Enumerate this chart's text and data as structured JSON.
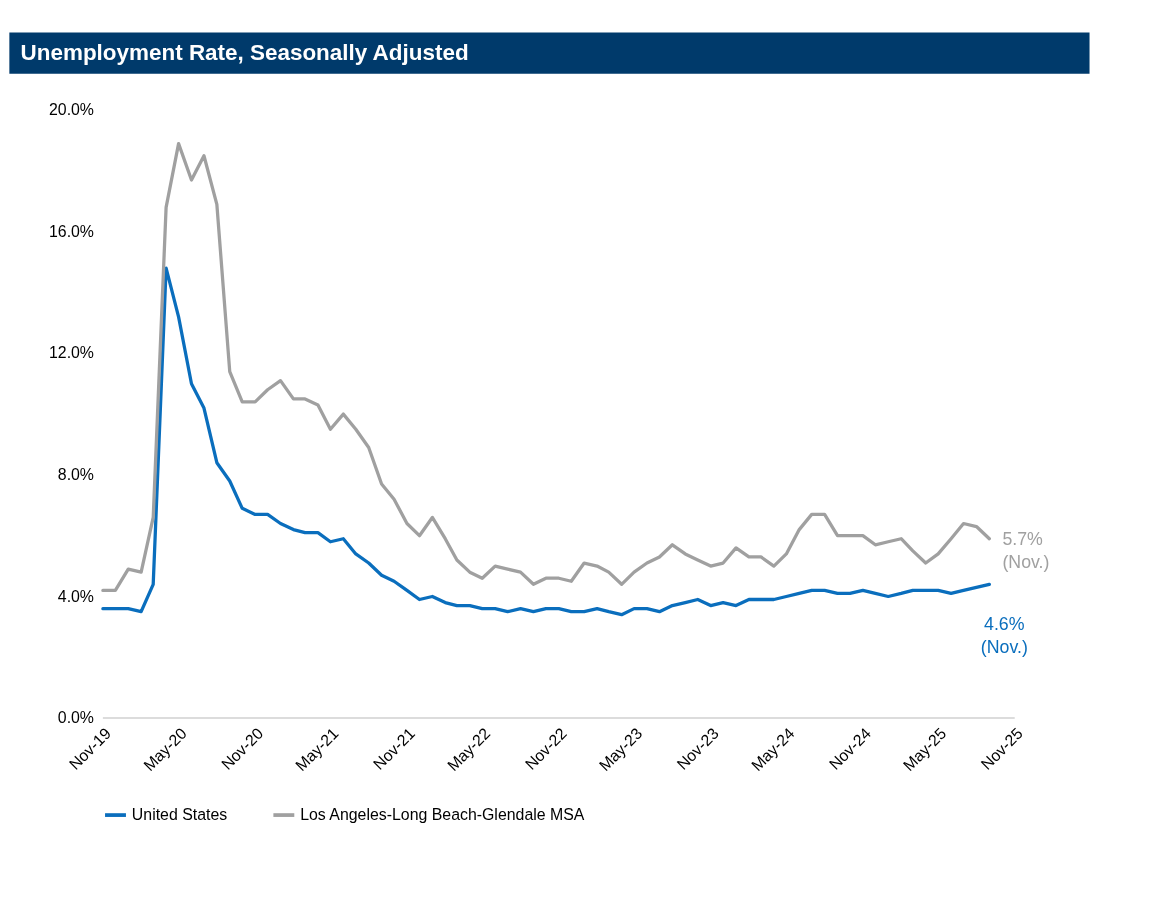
{
  "chart_data": {
    "type": "line",
    "title": "Unemployment Rate, Seasonally Adjusted",
    "x": [
      "2019-11",
      "2019-12",
      "2020-01",
      "2020-02",
      "2020-03",
      "2020-04",
      "2020-05",
      "2020-06",
      "2020-07",
      "2020-08",
      "2020-09",
      "2020-10",
      "2020-11",
      "2020-12",
      "2021-01",
      "2021-02",
      "2021-03",
      "2021-04",
      "2021-05",
      "2021-06",
      "2021-07",
      "2021-08",
      "2021-09",
      "2021-10",
      "2021-11",
      "2021-12",
      "2022-01",
      "2022-02",
      "2022-03",
      "2022-04",
      "2022-05",
      "2022-06",
      "2022-07",
      "2022-08",
      "2022-09",
      "2022-10",
      "2022-11",
      "2022-12",
      "2023-01",
      "2023-02",
      "2023-03",
      "2023-04",
      "2023-05",
      "2023-06",
      "2023-07",
      "2023-08",
      "2023-09",
      "2023-10",
      "2023-11",
      "2023-12",
      "2024-01",
      "2024-02",
      "2024-03",
      "2024-04",
      "2024-05",
      "2024-06",
      "2024-07",
      "2024-08",
      "2024-09",
      "2024-10",
      "2024-11",
      "2024-12",
      "2025-01",
      "2025-02",
      "2025-03",
      "2025-04",
      "2025-05",
      "2025-06",
      "2025-07",
      "2025-08",
      "2025-09"
    ],
    "series": [
      {
        "name": "United States",
        "color": "#0a6ebd",
        "values": [
          3.6,
          3.6,
          3.6,
          3.5,
          4.4,
          14.8,
          13.2,
          11.0,
          10.2,
          8.4,
          7.8,
          6.9,
          6.7,
          6.7,
          6.4,
          6.2,
          6.1,
          6.1,
          5.8,
          5.9,
          5.4,
          5.1,
          4.7,
          4.5,
          4.2,
          3.9,
          4.0,
          3.8,
          3.7,
          3.7,
          3.6,
          3.6,
          3.5,
          3.6,
          3.5,
          3.6,
          3.6,
          3.5,
          3.5,
          3.6,
          3.5,
          3.4,
          3.6,
          3.6,
          3.5,
          3.7,
          3.8,
          3.9,
          3.7,
          3.8,
          3.7,
          3.9,
          3.9,
          3.9,
          4.0,
          4.1,
          4.2,
          4.2,
          4.1,
          4.1,
          4.2,
          4.1,
          4.0,
          4.1,
          4.2,
          4.2,
          4.2,
          4.1,
          4.2,
          4.3,
          4.4
        ]
      },
      {
        "name": "Los Angeles-Long Beach-Glendale MSA",
        "color": "#a0a0a0",
        "values": [
          4.2,
          4.2,
          4.9,
          4.8,
          6.6,
          16.8,
          18.9,
          17.7,
          18.5,
          16.9,
          11.4,
          10.4,
          10.4,
          10.8,
          11.1,
          10.5,
          10.5,
          10.3,
          9.5,
          10.0,
          9.5,
          8.9,
          7.7,
          7.2,
          6.4,
          6.0,
          6.6,
          5.9,
          5.2,
          4.8,
          4.6,
          5.0,
          4.9,
          4.8,
          4.4,
          4.6,
          4.6,
          4.5,
          5.1,
          5.0,
          4.8,
          4.4,
          4.8,
          5.1,
          5.3,
          5.7,
          5.4,
          5.2,
          5.0,
          5.1,
          5.6,
          5.3,
          5.3,
          5.0,
          5.4,
          6.2,
          6.7,
          6.7,
          6.0,
          6.0,
          6.0,
          5.7,
          5.8,
          5.9,
          5.5,
          5.1,
          5.4,
          5.9,
          6.4,
          6.3,
          5.9
        ]
      }
    ],
    "xlim": [
      "2019-11",
      "2025-11"
    ],
    "xticks": [
      {
        "value": "2019-11",
        "label": "Nov-19"
      },
      {
        "value": "2020-05",
        "label": "May-20"
      },
      {
        "value": "2020-11",
        "label": "Nov-20"
      },
      {
        "value": "2021-05",
        "label": "May-21"
      },
      {
        "value": "2021-11",
        "label": "Nov-21"
      },
      {
        "value": "2022-05",
        "label": "May-22"
      },
      {
        "value": "2022-11",
        "label": "Nov-22"
      },
      {
        "value": "2023-05",
        "label": "May-23"
      },
      {
        "value": "2023-11",
        "label": "Nov-23"
      },
      {
        "value": "2024-05",
        "label": "May-24"
      },
      {
        "value": "2024-11",
        "label": "Nov-24"
      },
      {
        "value": "2025-05",
        "label": "May-25"
      },
      {
        "value": "2025-11",
        "label": "Nov-25"
      }
    ],
    "ylim": [
      0,
      20
    ],
    "yticks": [
      {
        "value": 0,
        "label": "0.0%"
      },
      {
        "value": 4,
        "label": "4.0%"
      },
      {
        "value": 8,
        "label": "8.0%"
      },
      {
        "value": 12,
        "label": "12.0%"
      },
      {
        "value": 16,
        "label": "16.0%"
      },
      {
        "value": 20,
        "label": "20.0%"
      }
    ],
    "annotations": [
      {
        "text": "5.7%\n(Nov.)",
        "x": "2025-09",
        "y": 5.9
      },
      {
        "text": "4.6%\n(Nov.)",
        "x": "2025-09",
        "y": 4.4
      }
    ],
    "grid": false,
    "legend": "bottom",
    "marker": "none",
    "line_style": "solid"
  }
}
